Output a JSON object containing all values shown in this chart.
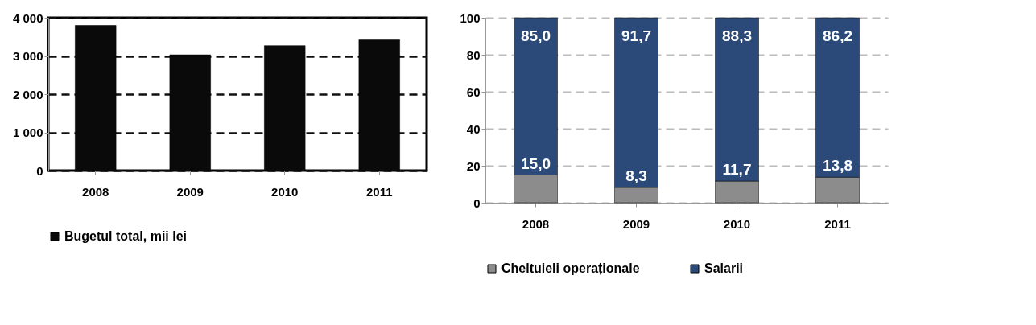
{
  "chart_data": [
    {
      "type": "bar",
      "categories": [
        "2008",
        "2009",
        "2010",
        "2011"
      ],
      "series": [
        {
          "name": "Bugetul total, mii lei",
          "color": "#0a0a0a",
          "values": [
            3800,
            3030,
            3270,
            3420
          ]
        }
      ],
      "ylim": [
        0,
        4000
      ],
      "yticks": [
        0,
        {
          "value": 1000,
          "label": "1 000"
        },
        {
          "value": 2000,
          "label": "2 000"
        },
        {
          "value": 3000,
          "label": "3 000"
        },
        {
          "value": 4000,
          "label": "4 000"
        }
      ],
      "grid": "y",
      "legend": "bottom"
    },
    {
      "type": "bar",
      "stacked": true,
      "categories": [
        "2008",
        "2009",
        "2010",
        "2011"
      ],
      "series": [
        {
          "name": "Cheltuieli operaționale",
          "color": "#8c8c8c",
          "values": [
            15.0,
            8.3,
            11.7,
            13.8
          ],
          "value_labels": [
            "15,0",
            "8,3",
            "11,7",
            "13,8"
          ]
        },
        {
          "name": "Salarii",
          "color": "#2b4a7a",
          "values": [
            85.0,
            91.7,
            88.3,
            86.2
          ],
          "value_labels": [
            "85,0",
            "91,7",
            "88,3",
            "86,2"
          ]
        }
      ],
      "ylim": [
        0,
        100
      ],
      "yticks": [
        0,
        20,
        40,
        60,
        80,
        100
      ],
      "grid": "y",
      "legend": "bottom"
    }
  ]
}
